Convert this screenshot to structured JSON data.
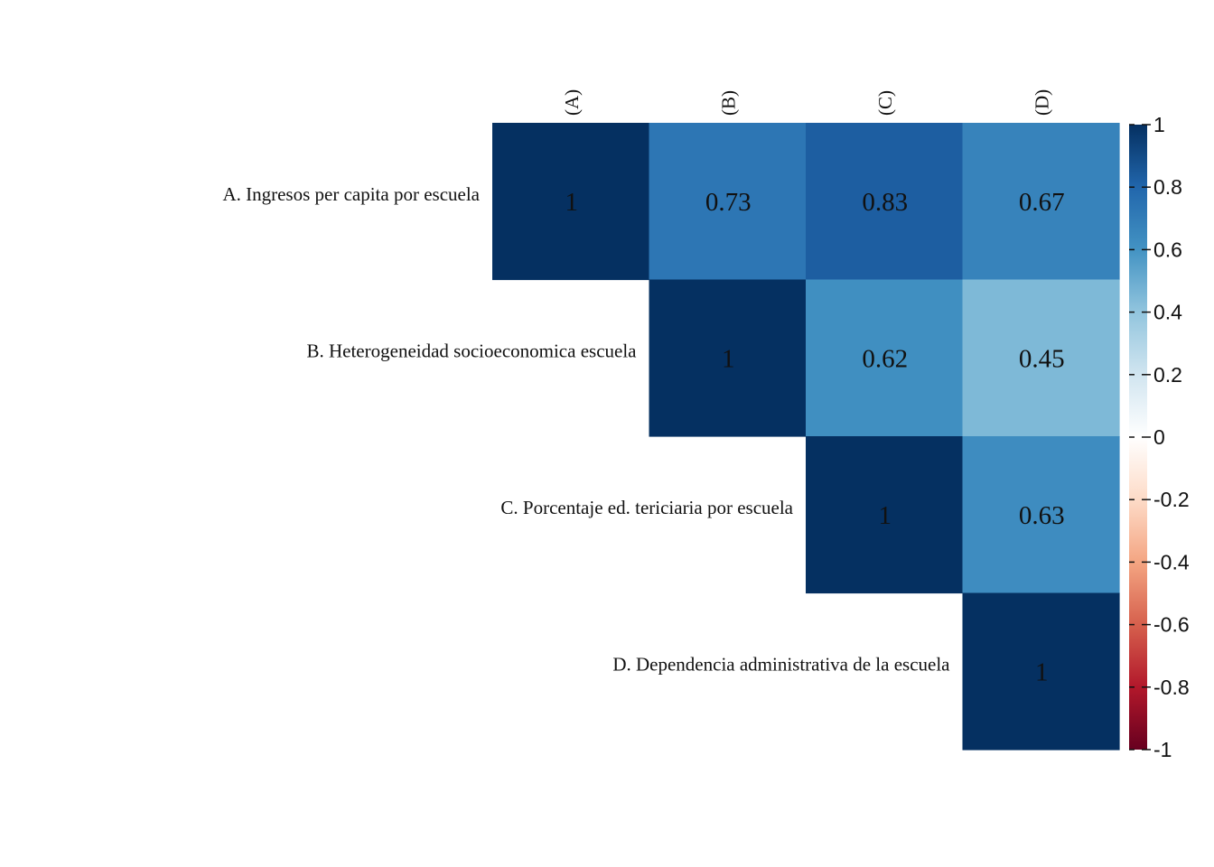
{
  "chart_data": {
    "type": "heatmap",
    "subtype": "correlation-matrix-upper",
    "row_labels": [
      "A. Ingresos per capita por escuela",
      "B. Heterogeneidad socioeconomica escuela",
      "C. Porcentaje ed. tericiaria por escuela",
      "D. Dependencia administrativa de la escuela"
    ],
    "col_labels": [
      "(A)",
      "(B)",
      "(C)",
      "(D)"
    ],
    "values": [
      [
        1,
        0.73,
        0.83,
        0.67
      ],
      [
        null,
        1,
        0.62,
        0.45
      ],
      [
        null,
        null,
        1,
        0.63
      ],
      [
        null,
        null,
        null,
        1
      ]
    ],
    "value_labels": [
      [
        "1",
        "0.73",
        "0.83",
        "0.67"
      ],
      [
        "",
        "1",
        "0.62",
        "0.45"
      ],
      [
        "",
        "",
        "1",
        "0.63"
      ],
      [
        "",
        "",
        "",
        "1"
      ]
    ],
    "colorbar": {
      "range": [
        -1,
        1
      ],
      "ticks": [
        1,
        0.8,
        0.6,
        0.4,
        0.2,
        0,
        -0.2,
        -0.4,
        -0.6,
        -0.8,
        -1
      ],
      "tick_labels": [
        "1",
        "0.8",
        "0.6",
        "0.4",
        "0.2",
        "0",
        "-0.2",
        "-0.4",
        "-0.6",
        "-0.8",
        "-1"
      ],
      "position": "right"
    },
    "colorscale": [
      {
        "v": -1.0,
        "color": "#67001f"
      },
      {
        "v": -0.8,
        "color": "#b2182b"
      },
      {
        "v": -0.6,
        "color": "#d6604d"
      },
      {
        "v": -0.4,
        "color": "#f4a582"
      },
      {
        "v": -0.2,
        "color": "#fddbc7"
      },
      {
        "v": 0.0,
        "color": "#ffffff"
      },
      {
        "v": 0.2,
        "color": "#d1e5f0"
      },
      {
        "v": 0.4,
        "color": "#92c5de"
      },
      {
        "v": 0.6,
        "color": "#4393c3"
      },
      {
        "v": 0.8,
        "color": "#2166ac"
      },
      {
        "v": 1.0,
        "color": "#053061"
      }
    ]
  }
}
